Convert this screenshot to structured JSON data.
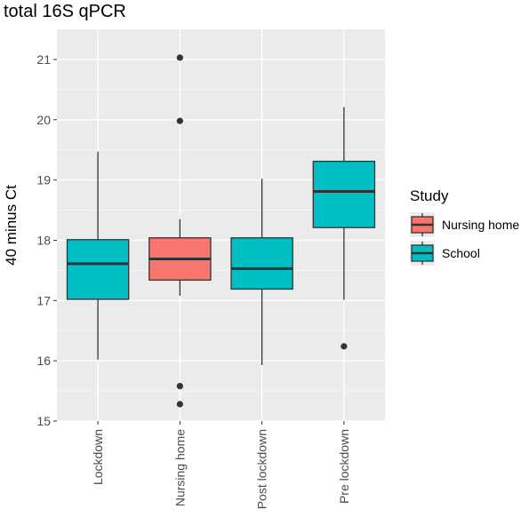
{
  "chart_data": {
    "type": "boxplot",
    "title": "total 16S qPCR",
    "ylabel": "40 minus Ct",
    "xlabel": "",
    "ylim": [
      15,
      21.5
    ],
    "yticks": [
      15,
      16,
      17,
      18,
      19,
      20,
      21
    ],
    "grid": true,
    "legend": {
      "title": "Study",
      "position": "right",
      "entries": [
        {
          "label": "Nursing home",
          "color": "#F8766D"
        },
        {
          "label": "School",
          "color": "#00BFC4"
        }
      ]
    },
    "categories": [
      "Lockdown",
      "Nursing home",
      "Post lockdown",
      "Pre lockdown"
    ],
    "boxes": [
      {
        "category": "Lockdown",
        "study": "School",
        "whisker_low": 16.02,
        "q1": 17.02,
        "median": 17.61,
        "q3": 18.01,
        "whisker_high": 19.47,
        "outliers": []
      },
      {
        "category": "Nursing home",
        "study": "Nursing home",
        "whisker_low": 17.08,
        "q1": 17.34,
        "median": 17.69,
        "q3": 18.04,
        "whisker_high": 18.35,
        "outliers": [
          21.03,
          19.98,
          15.58,
          15.28
        ]
      },
      {
        "category": "Post lockdown",
        "study": "School",
        "whisker_low": 15.93,
        "q1": 17.19,
        "median": 17.53,
        "q3": 18.04,
        "whisker_high": 19.02,
        "outliers": []
      },
      {
        "category": "Pre lockdown",
        "study": "School",
        "whisker_low": 17.01,
        "q1": 18.21,
        "median": 18.81,
        "q3": 19.31,
        "whisker_high": 20.21,
        "outliers": [
          16.24
        ]
      }
    ]
  }
}
